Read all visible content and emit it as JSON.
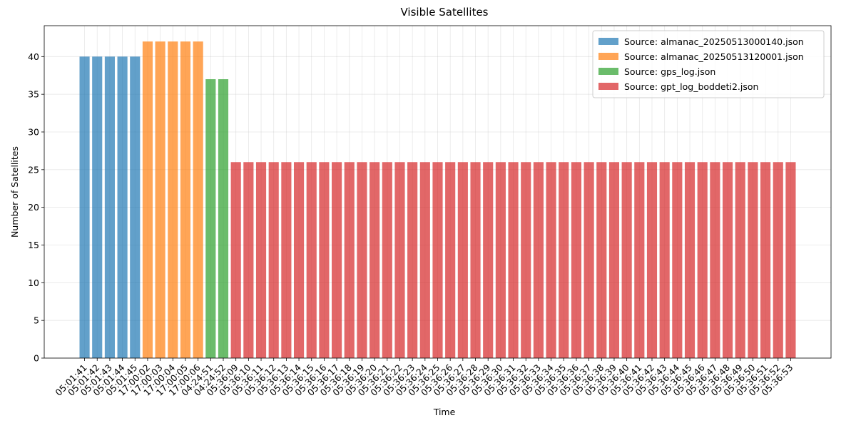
{
  "chart_data": {
    "type": "bar",
    "title": "Visible Satellites",
    "x_label": "Time",
    "y_label": "Number of Satellites",
    "categories": [
      "05:01:41",
      "05:01:42",
      "05:01:43",
      "05:01:44",
      "05:01:45",
      "17:00:02",
      "17:00:03",
      "17:00:04",
      "17:00:05",
      "17:00:06",
      "04:24:51",
      "04:24:52",
      "05:36:09",
      "05:36:10",
      "05:36:11",
      "05:36:12",
      "05:36:13",
      "05:36:14",
      "05:36:15",
      "05:36:16",
      "05:36:17",
      "05:36:18",
      "05:36:19",
      "05:36:20",
      "05:36:21",
      "05:36:22",
      "05:36:23",
      "05:36:24",
      "05:36:25",
      "05:36:26",
      "05:36:27",
      "05:36:28",
      "05:36:29",
      "05:36:30",
      "05:36:31",
      "05:36:32",
      "05:36:33",
      "05:36:34",
      "05:36:35",
      "05:36:36",
      "05:36:37",
      "05:36:38",
      "05:36:39",
      "05:36:40",
      "05:36:41",
      "05:36:42",
      "05:36:43",
      "05:36:44",
      "05:36:45",
      "05:36:46",
      "05:36:47",
      "05:36:48",
      "05:36:49",
      "05:36:50",
      "05:36:51",
      "05:36:52",
      "05:36:53"
    ],
    "series": [
      {
        "name": "Source: almanac_20250513000140.json",
        "color": "#1f77b4",
        "values": [
          40,
          40,
          40,
          40,
          40,
          null,
          null,
          null,
          null,
          null,
          null,
          null,
          null,
          null,
          null,
          null,
          null,
          null,
          null,
          null,
          null,
          null,
          null,
          null,
          null,
          null,
          null,
          null,
          null,
          null,
          null,
          null,
          null,
          null,
          null,
          null,
          null,
          null,
          null,
          null,
          null,
          null,
          null,
          null,
          null,
          null,
          null,
          null,
          null,
          null,
          null,
          null,
          null,
          null,
          null,
          null,
          null
        ]
      },
      {
        "name": "Source: almanac_20250513120001.json",
        "color": "#ff7f0e",
        "values": [
          null,
          null,
          null,
          null,
          null,
          42,
          42,
          42,
          42,
          42,
          null,
          null,
          null,
          null,
          null,
          null,
          null,
          null,
          null,
          null,
          null,
          null,
          null,
          null,
          null,
          null,
          null,
          null,
          null,
          null,
          null,
          null,
          null,
          null,
          null,
          null,
          null,
          null,
          null,
          null,
          null,
          null,
          null,
          null,
          null,
          null,
          null,
          null,
          null,
          null,
          null,
          null,
          null,
          null,
          null,
          null,
          null
        ]
      },
      {
        "name": "Source: gps_log.json",
        "color": "#2ca02c",
        "values": [
          null,
          null,
          null,
          null,
          null,
          null,
          null,
          null,
          null,
          null,
          37,
          37,
          null,
          null,
          null,
          null,
          null,
          null,
          null,
          null,
          null,
          null,
          null,
          null,
          null,
          null,
          null,
          null,
          null,
          null,
          null,
          null,
          null,
          null,
          null,
          null,
          null,
          null,
          null,
          null,
          null,
          null,
          null,
          null,
          null,
          null,
          null,
          null,
          null,
          null,
          null,
          null,
          null,
          null,
          null,
          null,
          null
        ]
      },
      {
        "name": "Source: gpt_log_boddeti2.json",
        "color": "#d62728",
        "values": [
          null,
          null,
          null,
          null,
          null,
          null,
          null,
          null,
          null,
          null,
          null,
          null,
          26,
          26,
          26,
          26,
          26,
          26,
          26,
          26,
          26,
          26,
          26,
          26,
          26,
          26,
          26,
          26,
          26,
          26,
          26,
          26,
          26,
          26,
          26,
          26,
          26,
          26,
          26,
          26,
          26,
          26,
          26,
          26,
          26,
          26,
          26,
          26,
          26,
          26,
          26,
          26,
          26,
          26,
          26,
          26,
          26
        ]
      }
    ],
    "ylim": [
      0,
      44.1
    ],
    "yticks": [
      0,
      5,
      10,
      15,
      20,
      25,
      30,
      35,
      40
    ],
    "grid": true,
    "legend": "upper right"
  }
}
